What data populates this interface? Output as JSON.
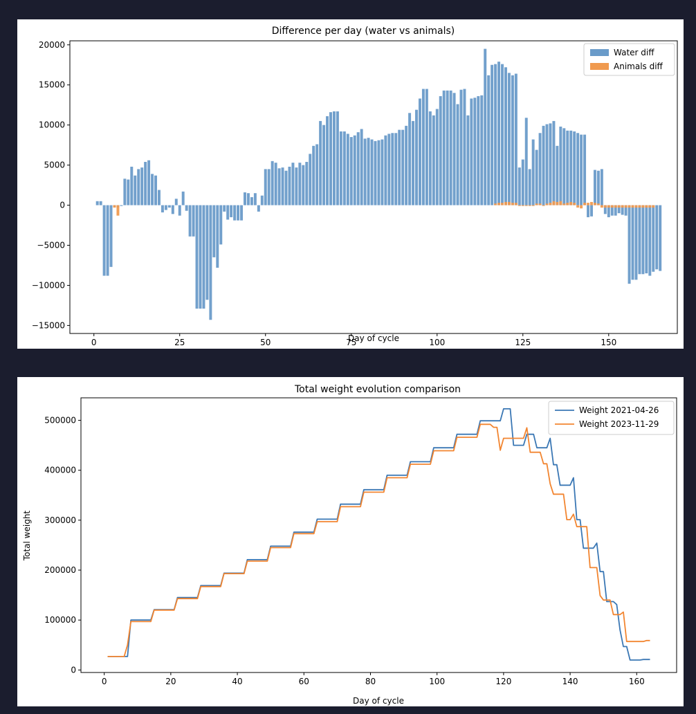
{
  "chart_data": [
    {
      "type": "bar",
      "title": "Difference per day (water vs animals)",
      "xlabel": "Day of cycle",
      "ylabel": "",
      "xlim": [
        -7,
        170
      ],
      "ylim": [
        -16000,
        20500
      ],
      "xticks": [
        0,
        25,
        50,
        75,
        100,
        125,
        150
      ],
      "yticks": [
        -15000,
        -10000,
        -5000,
        0,
        5000,
        10000,
        15000,
        20000
      ],
      "legend_position": "top-right",
      "x_start": 1,
      "series": [
        {
          "name": "Water diff",
          "color": "#6a9bc9",
          "values": [
            500,
            500,
            -8800,
            -8800,
            -7700,
            -200,
            -300,
            -100,
            3300,
            3200,
            4800,
            3700,
            4500,
            4700,
            5400,
            5600,
            3900,
            3700,
            1900,
            -900,
            -600,
            -300,
            -1100,
            800,
            -1300,
            1700,
            -700,
            -3900,
            -3900,
            -12900,
            -12900,
            -12900,
            -11800,
            -14300,
            -6500,
            -7800,
            -4900,
            -800,
            -1800,
            -1500,
            -1900,
            -1900,
            -1900,
            1600,
            1500,
            1000,
            1500,
            -800,
            1200,
            4500,
            4500,
            5500,
            5300,
            4600,
            4700,
            4300,
            4800,
            5300,
            4700,
            5300,
            5000,
            5400,
            6400,
            7400,
            7600,
            10500,
            10000,
            11100,
            11600,
            11700,
            11700,
            9200,
            9200,
            8900,
            8500,
            8700,
            9100,
            9500,
            8300,
            8400,
            8200,
            8000,
            8100,
            8200,
            8700,
            8900,
            9000,
            9000,
            9400,
            9400,
            9900,
            11500,
            10500,
            11900,
            13300,
            14500,
            14500,
            11700,
            11200,
            12000,
            13600,
            14300,
            14300,
            14300,
            14000,
            12600,
            14400,
            14500,
            11200,
            13300,
            13400,
            13600,
            13700,
            19500,
            16200,
            17500,
            17600,
            17900,
            17600,
            17200,
            16500,
            16200,
            16400,
            4700,
            5700,
            10900,
            4500,
            8200,
            6900,
            9000,
            9900,
            10100,
            10200,
            10500,
            7400,
            9800,
            9600,
            9300,
            9300,
            9200,
            9000,
            8800,
            8800,
            -1500,
            -1400,
            4400,
            4300,
            4500,
            -1100,
            -1500,
            -1300,
            -1300,
            -1000,
            -1200,
            -1300,
            -9800,
            -9300,
            -9300,
            -8600,
            -8600,
            -8500,
            -8800,
            -8300,
            -8000,
            -8200
          ]
        },
        {
          "name": "Animals diff",
          "color": "#f09a4f",
          "values": [
            0,
            0,
            0,
            0,
            0,
            -300,
            -1300,
            0,
            0,
            0,
            0,
            0,
            0,
            0,
            0,
            0,
            0,
            0,
            0,
            0,
            0,
            0,
            0,
            0,
            0,
            0,
            0,
            0,
            0,
            0,
            0,
            0,
            0,
            0,
            0,
            0,
            0,
            0,
            0,
            0,
            0,
            0,
            0,
            0,
            0,
            0,
            0,
            0,
            0,
            0,
            0,
            0,
            0,
            0,
            0,
            0,
            0,
            0,
            0,
            0,
            0,
            0,
            0,
            0,
            0,
            0,
            0,
            0,
            0,
            0,
            0,
            0,
            0,
            0,
            0,
            0,
            0,
            0,
            0,
            0,
            0,
            0,
            0,
            0,
            0,
            0,
            0,
            0,
            0,
            0,
            0,
            0,
            0,
            0,
            0,
            0,
            0,
            0,
            0,
            0,
            0,
            0,
            0,
            0,
            0,
            0,
            0,
            0,
            0,
            0,
            0,
            0,
            0,
            0,
            0,
            0,
            200,
            300,
            300,
            400,
            400,
            300,
            300,
            -100,
            -100,
            -100,
            -100,
            -100,
            200,
            200,
            -100,
            200,
            300,
            500,
            400,
            500,
            200,
            300,
            400,
            300,
            -300,
            -400,
            300,
            300,
            400,
            300,
            200,
            -300,
            -300,
            -300,
            -300,
            -300,
            -300,
            -300,
            -300,
            -300,
            -300,
            -300,
            -300,
            -300,
            -300,
            -300,
            -300
          ]
        }
      ]
    },
    {
      "type": "line",
      "title": "Total weight evolution comparison",
      "xlabel": "Day of cycle",
      "ylabel": "Total weight",
      "xlim": [
        -7,
        172
      ],
      "ylim": [
        -5000,
        545000
      ],
      "xticks": [
        0,
        20,
        40,
        60,
        80,
        100,
        120,
        140,
        160
      ],
      "yticks": [
        0,
        100000,
        200000,
        300000,
        400000,
        500000
      ],
      "legend_position": "top-right",
      "series": [
        {
          "name": "Weight 2021-04-26",
          "color": "#3a77b4",
          "points": [
            [
              1,
              27000
            ],
            [
              7,
              27000
            ],
            [
              8,
              100000
            ],
            [
              14,
              100000
            ],
            [
              15,
              121000
            ],
            [
              21,
              121000
            ],
            [
              22,
              145000
            ],
            [
              28,
              145000
            ],
            [
              29,
              169000
            ],
            [
              35,
              169000
            ],
            [
              36,
              194000
            ],
            [
              42,
              194000
            ],
            [
              43,
              221000
            ],
            [
              49,
              221000
            ],
            [
              50,
              248000
            ],
            [
              56,
              248000
            ],
            [
              57,
              276000
            ],
            [
              63,
              276000
            ],
            [
              64,
              302000
            ],
            [
              70,
              302000
            ],
            [
              71,
              332000
            ],
            [
              77,
              332000
            ],
            [
              78,
              361000
            ],
            [
              84,
              361000
            ],
            [
              85,
              390000
            ],
            [
              91,
              390000
            ],
            [
              92,
              417000
            ],
            [
              98,
              417000
            ],
            [
              99,
              445000
            ],
            [
              105,
              445000
            ],
            [
              106,
              472000
            ],
            [
              112,
              472000
            ],
            [
              113,
              499000
            ],
            [
              119,
              499000
            ],
            [
              120,
              523000
            ],
            [
              122,
              523000
            ],
            [
              123,
              450000
            ],
            [
              126,
              450000
            ],
            [
              127,
              472000
            ],
            [
              129,
              472000
            ],
            [
              130,
              445000
            ],
            [
              133,
              445000
            ],
            [
              134,
              464000
            ],
            [
              135,
              411000
            ],
            [
              136,
              411000
            ],
            [
              137,
              370000
            ],
            [
              140,
              370000
            ],
            [
              141,
              385000
            ],
            [
              142,
              301000
            ],
            [
              143,
              301000
            ],
            [
              144,
              244000
            ],
            [
              147,
              244000
            ],
            [
              148,
              254000
            ],
            [
              149,
              197000
            ],
            [
              150,
              197000
            ],
            [
              151,
              137000
            ],
            [
              153,
              137000
            ],
            [
              154,
              131000
            ],
            [
              155,
              80000
            ],
            [
              156,
              47000
            ],
            [
              157,
              47000
            ],
            [
              158,
              20000
            ],
            [
              161,
              20000
            ],
            [
              162,
              21000
            ],
            [
              164,
              21000
            ]
          ]
        },
        {
          "name": "Weight 2023-11-29",
          "color": "#f28530",
          "points": [
            [
              1,
              27000
            ],
            [
              6,
              27000
            ],
            [
              7,
              50000
            ],
            [
              8,
              97000
            ],
            [
              14,
              97000
            ],
            [
              15,
              120000
            ],
            [
              21,
              120000
            ],
            [
              22,
              143000
            ],
            [
              28,
              143000
            ],
            [
              29,
              167000
            ],
            [
              35,
              167000
            ],
            [
              36,
              193000
            ],
            [
              42,
              193000
            ],
            [
              43,
              218000
            ],
            [
              49,
              218000
            ],
            [
              50,
              245000
            ],
            [
              56,
              245000
            ],
            [
              57,
              273000
            ],
            [
              63,
              273000
            ],
            [
              64,
              297000
            ],
            [
              70,
              297000
            ],
            [
              71,
              327000
            ],
            [
              77,
              327000
            ],
            [
              78,
              356000
            ],
            [
              84,
              356000
            ],
            [
              85,
              385000
            ],
            [
              91,
              385000
            ],
            [
              92,
              412000
            ],
            [
              98,
              412000
            ],
            [
              99,
              439000
            ],
            [
              105,
              439000
            ],
            [
              106,
              466000
            ],
            [
              112,
              466000
            ],
            [
              113,
              492000
            ],
            [
              116,
              492000
            ],
            [
              117,
              486000
            ],
            [
              118,
              486000
            ],
            [
              119,
              440000
            ],
            [
              120,
              464000
            ],
            [
              126,
              464000
            ],
            [
              127,
              485000
            ],
            [
              128,
              436000
            ],
            [
              131,
              436000
            ],
            [
              132,
              413000
            ],
            [
              133,
              413000
            ],
            [
              134,
              373000
            ],
            [
              135,
              352000
            ],
            [
              138,
              352000
            ],
            [
              139,
              301000
            ],
            [
              140,
              301000
            ],
            [
              141,
              312000
            ],
            [
              142,
              287000
            ],
            [
              145,
              287000
            ],
            [
              146,
              205000
            ],
            [
              148,
              205000
            ],
            [
              149,
              149000
            ],
            [
              150,
              140000
            ],
            [
              152,
              140000
            ],
            [
              153,
              111000
            ],
            [
              155,
              111000
            ],
            [
              156,
              116000
            ],
            [
              157,
              57000
            ],
            [
              162,
              57000
            ],
            [
              163,
              59000
            ],
            [
              164,
              59000
            ]
          ]
        }
      ]
    }
  ]
}
